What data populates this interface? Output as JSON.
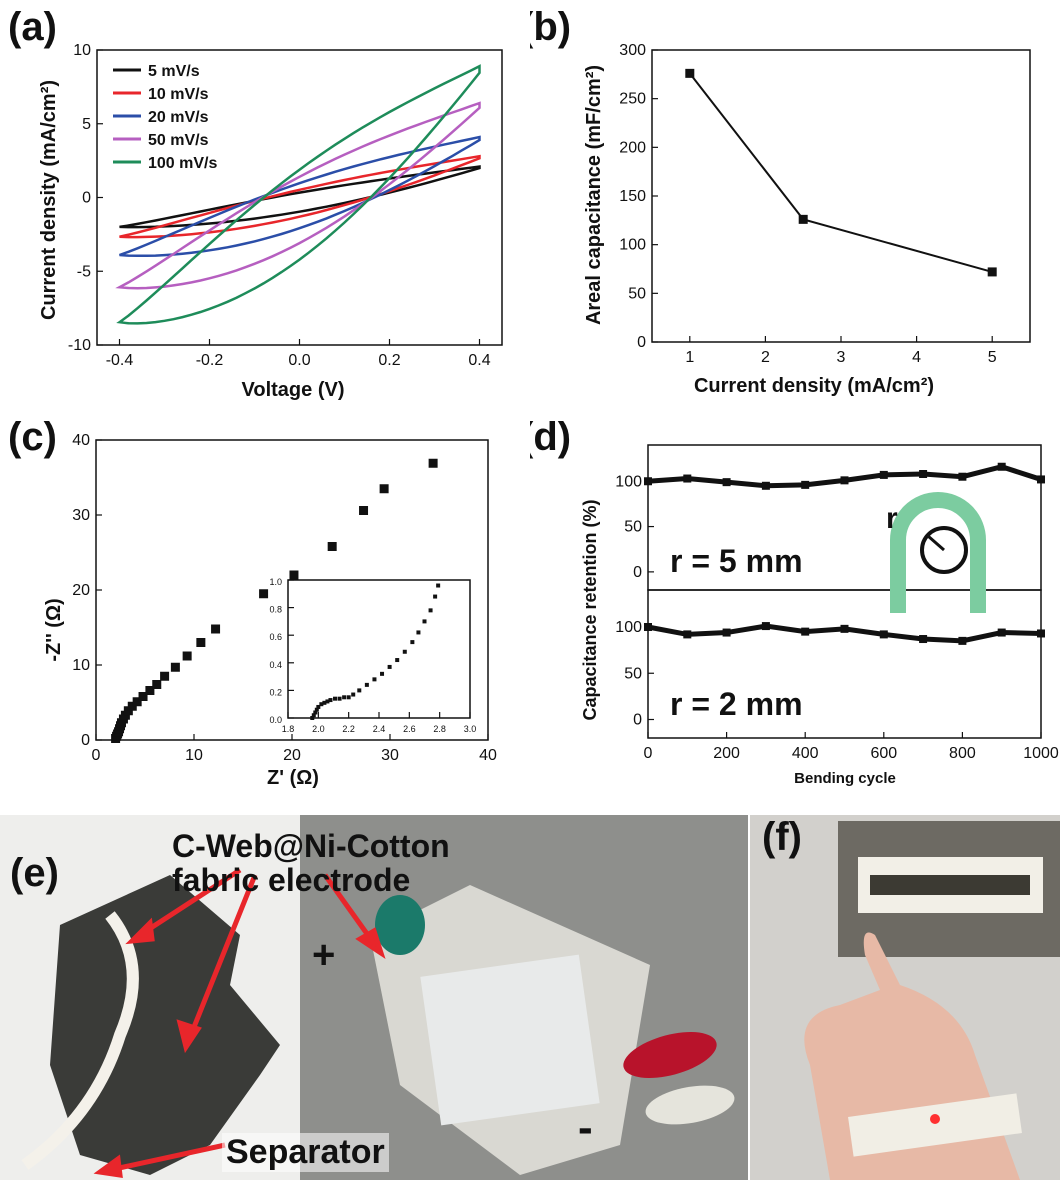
{
  "panels": {
    "a": {
      "label": "(a)"
    },
    "b": {
      "label": "(b)"
    },
    "c": {
      "label": "(c)"
    },
    "d": {
      "label": "(d)"
    },
    "e": {
      "label": "(e)"
    },
    "f": {
      "label": "(f)"
    }
  },
  "photo_e": {
    "callout_line1": "C-Web@Ni-Cotton",
    "callout_line2": "fabric electrode",
    "separator": "Separator",
    "plus": "+",
    "minus": "-"
  },
  "colors": {
    "black": "#111111",
    "red": "#e8262b",
    "blue": "#2b4ea8",
    "purple": "#b65fc0",
    "green": "#1e8c5a",
    "arrow_red": "#e8262b",
    "bend_green": "#7ccca0"
  },
  "chart_data": [
    {
      "id": "a",
      "type": "line",
      "xlabel": "Voltage (V)",
      "ylabel": "Current density (mA/cm²)",
      "xlim": [
        -0.45,
        0.45
      ],
      "ylim": [
        -10,
        10
      ],
      "xticks": [
        "-0.4",
        "-0.2",
        "0.0",
        "0.2",
        "0.4"
      ],
      "yticks": [
        "-10",
        "-5",
        "0",
        "5",
        "10"
      ],
      "legend_position": "top-left",
      "series": [
        {
          "name": "5 mV/s",
          "color": "#111111",
          "amp": 2.1,
          "mid_up": 0.8,
          "mid_down": -0.8
        },
        {
          "name": "10 mV/s",
          "color": "#e8262b",
          "amp": 2.8,
          "mid_up": 1.2,
          "mid_down": -1.1
        },
        {
          "name": "20 mV/s",
          "color": "#2b4ea8",
          "amp": 4.1,
          "mid_up": 2.1,
          "mid_down": -1.9
        },
        {
          "name": "50 mV/s",
          "color": "#b65fc0",
          "amp": 6.4,
          "mid_up": 3.1,
          "mid_down": -2.7
        },
        {
          "name": "100 mV/s",
          "color": "#1e8c5a",
          "amp": 8.9,
          "mid_up": 4.2,
          "mid_down": -3.6
        }
      ]
    },
    {
      "id": "b",
      "type": "line",
      "xlabel": "Current density (mA/cm²)",
      "ylabel": "Areal capacitance (mF/cm²)",
      "xlim": [
        0.5,
        5.5
      ],
      "ylim": [
        0,
        300
      ],
      "xticks": [
        "1",
        "2",
        "3",
        "4",
        "5"
      ],
      "yticks": [
        "0",
        "50",
        "100",
        "150",
        "200",
        "250",
        "300"
      ],
      "x": [
        1,
        2.5,
        5
      ],
      "y": [
        276,
        126,
        72
      ]
    },
    {
      "id": "c",
      "type": "scatter",
      "xlabel": "Z' (Ω)",
      "ylabel": "-Z'' (Ω)",
      "xlim": [
        0,
        40
      ],
      "ylim": [
        0,
        40
      ],
      "xticks": [
        "0",
        "10",
        "20",
        "30",
        "40"
      ],
      "yticks": [
        "0",
        "10",
        "20",
        "30",
        "40"
      ],
      "x": [
        2.0,
        2.1,
        2.2,
        2.3,
        2.4,
        2.5,
        2.6,
        2.8,
        3.0,
        3.3,
        3.7,
        4.2,
        4.8,
        5.5,
        6.2,
        7.0,
        8.1,
        9.3,
        10.7,
        12.2,
        17.1,
        20.2,
        24.1,
        27.3,
        29.4,
        34.4
      ],
      "y": [
        0.2,
        0.5,
        0.8,
        1.1,
        1.5,
        1.9,
        2.3,
        2.8,
        3.3,
        3.9,
        4.5,
        5.1,
        5.8,
        6.6,
        7.4,
        8.5,
        9.7,
        11.2,
        13.0,
        14.8,
        19.5,
        22.0,
        25.8,
        30.6,
        33.5,
        36.9
      ]
    },
    {
      "id": "c-inset",
      "type": "scatter",
      "xlim": [
        1.8,
        3.0
      ],
      "ylim": [
        0,
        1.0
      ],
      "xticks": [
        "1.8",
        "2.0",
        "2.2",
        "2.4",
        "2.6",
        "2.8",
        "3.0"
      ],
      "yticks": [
        "0.0",
        "0.2",
        "0.4",
        "0.6",
        "0.8",
        "1.0"
      ],
      "x": [
        1.96,
        1.97,
        1.98,
        1.99,
        2.0,
        2.02,
        2.04,
        2.06,
        2.08,
        2.11,
        2.14,
        2.17,
        2.2,
        2.23,
        2.27,
        2.32,
        2.37,
        2.42,
        2.47,
        2.52,
        2.57,
        2.62,
        2.66,
        2.7,
        2.74,
        2.77,
        2.79
      ],
      "y": [
        0.0,
        0.02,
        0.04,
        0.06,
        0.08,
        0.1,
        0.11,
        0.12,
        0.13,
        0.14,
        0.14,
        0.15,
        0.15,
        0.17,
        0.2,
        0.24,
        0.28,
        0.32,
        0.37,
        0.42,
        0.48,
        0.55,
        0.62,
        0.7,
        0.78,
        0.88,
        0.96
      ]
    },
    {
      "id": "d-top",
      "type": "line",
      "annotation": "r = 5 mm",
      "ylabel": "Capacitance retention (%)",
      "xlim": [
        0,
        1000
      ],
      "ylim": [
        -20,
        140
      ],
      "yticks": [
        "0",
        "50",
        "100"
      ],
      "x": [
        0,
        100,
        200,
        300,
        400,
        500,
        600,
        700,
        800,
        900,
        1000
      ],
      "y": [
        100,
        103,
        99,
        95,
        96,
        101,
        107,
        108,
        105,
        116,
        102
      ]
    },
    {
      "id": "d-bottom",
      "type": "line",
      "annotation": "r = 2 mm",
      "xlabel": "Bending cycle",
      "xlim": [
        0,
        1000
      ],
      "ylim": [
        -20,
        140
      ],
      "xticks": [
        "0",
        "200",
        "400",
        "600",
        "800",
        "1000"
      ],
      "yticks": [
        "0",
        "50",
        "100"
      ],
      "inset_label": "r",
      "x": [
        0,
        100,
        200,
        300,
        400,
        500,
        600,
        700,
        800,
        900,
        1000
      ],
      "y": [
        100,
        92,
        94,
        101,
        95,
        98,
        92,
        87,
        85,
        94,
        93
      ]
    }
  ]
}
